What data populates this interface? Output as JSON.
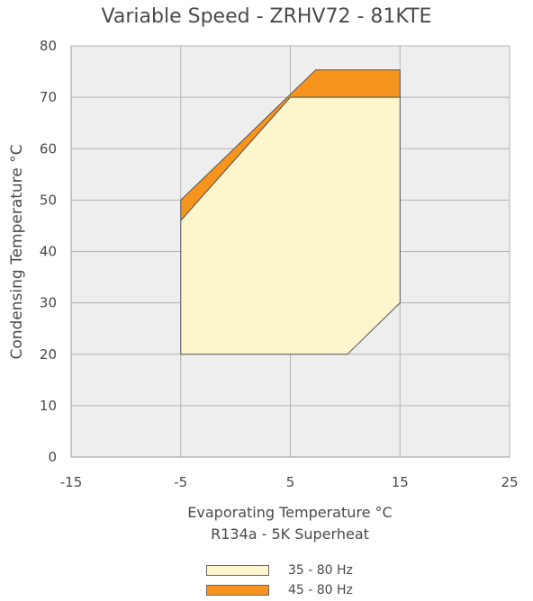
{
  "chart_data": {
    "type": "area",
    "title": "Variable Speed - ZRHV72 - 81KTE",
    "xlabel": "Evaporating Temperature °C",
    "xlabel2": "R134a - 5K Superheat",
    "ylabel": "Condensing Temperature °C",
    "xlim": [
      -15,
      25
    ],
    "ylim": [
      0,
      80
    ],
    "x_ticks": [
      -15,
      -5,
      5,
      15,
      25
    ],
    "y_ticks": [
      0,
      10,
      20,
      30,
      40,
      50,
      60,
      70,
      80
    ],
    "grid": true,
    "legend_position": "bottom",
    "series": [
      {
        "name": "45 - 80 Hz",
        "color": "#f7941d",
        "points": [
          [
            -5,
            46
          ],
          [
            -5,
            50
          ],
          [
            7.3,
            75.3
          ],
          [
            15,
            75.3
          ],
          [
            15,
            70
          ],
          [
            5,
            70
          ]
        ]
      },
      {
        "name": "35 - 80 Hz",
        "color": "#fdf6cc",
        "points": [
          [
            -5,
            20
          ],
          [
            10.2,
            20
          ],
          [
            15,
            30
          ],
          [
            15,
            70
          ],
          [
            5,
            70
          ],
          [
            -5,
            46
          ]
        ]
      }
    ],
    "legend_order": [
      "35 - 80 Hz",
      "45 - 80 Hz"
    ]
  }
}
